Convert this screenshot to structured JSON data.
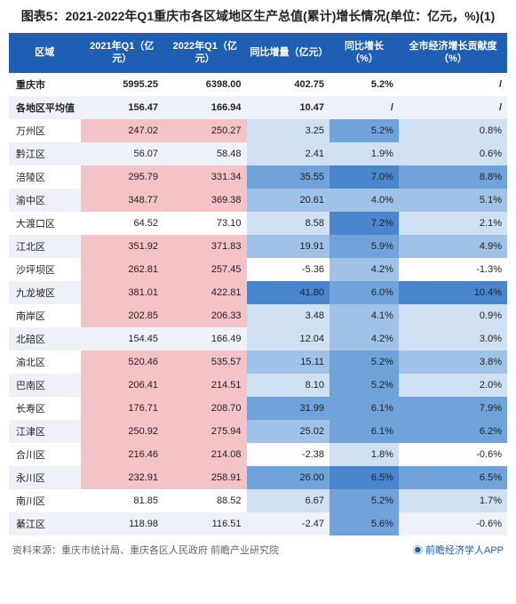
{
  "title": "图表5：2021-2022年Q1重庆市各区域地区生产总值(累计)增长情况(单位：亿元，%)(1)",
  "columns": [
    "区域",
    "2021年Q1（亿元）",
    "2022年Q1（亿元）",
    "同比增量（亿元）",
    "同比增长（%）",
    "全市经济增长贡献度（%）"
  ],
  "col_widths": [
    "62px",
    "72px",
    "72px",
    "72px",
    "60px",
    "94px"
  ],
  "header_bg": "#1e5fb4",
  "header_fg": "#ffffff",
  "band_bg": "#eef2f8",
  "pink_bg": "#f4c3c7",
  "blue1": "#cfe0f2",
  "blue2": "#9fc2e6",
  "blue3": "#6fa3da",
  "blue4": "#4a86cd",
  "rows": [
    {
      "band": false,
      "bold": true,
      "cells": [
        "重庆市",
        "5995.25",
        "6398.00",
        "402.75",
        "5.2%",
        "/"
      ],
      "bg": [
        "",
        "",
        "",
        "",
        "",
        ""
      ]
    },
    {
      "band": true,
      "bold": true,
      "cells": [
        "各地区平均值",
        "156.47",
        "166.94",
        "10.47",
        "/",
        "/"
      ],
      "bg": [
        "",
        "",
        "",
        "",
        "",
        ""
      ]
    },
    {
      "band": false,
      "bold": false,
      "cells": [
        "万州区",
        "247.02",
        "250.27",
        "3.25",
        "5.2%",
        "0.8%"
      ],
      "bg": [
        "",
        "p",
        "p",
        "b1",
        "b3",
        "b1"
      ]
    },
    {
      "band": true,
      "bold": false,
      "cells": [
        "黔江区",
        "56.07",
        "58.48",
        "2.41",
        "1.9%",
        "0.6%"
      ],
      "bg": [
        "",
        "",
        "",
        "b1",
        "b1",
        "b1"
      ]
    },
    {
      "band": false,
      "bold": false,
      "cells": [
        "涪陵区",
        "295.79",
        "331.34",
        "35.55",
        "7.0%",
        "8.8%"
      ],
      "bg": [
        "",
        "p",
        "p",
        "b3",
        "b4",
        "b3"
      ]
    },
    {
      "band": true,
      "bold": false,
      "cells": [
        "渝中区",
        "348.77",
        "369.38",
        "20.61",
        "4.0%",
        "5.1%"
      ],
      "bg": [
        "",
        "p",
        "p",
        "b2",
        "b2",
        "b2"
      ]
    },
    {
      "band": false,
      "bold": false,
      "cells": [
        "大渡口区",
        "64.52",
        "73.10",
        "8.58",
        "7.2%",
        "2.1%"
      ],
      "bg": [
        "",
        "",
        "",
        "b1",
        "b4",
        "b1"
      ]
    },
    {
      "band": true,
      "bold": false,
      "cells": [
        "江北区",
        "351.92",
        "371.83",
        "19.91",
        "5.9%",
        "4.9%"
      ],
      "bg": [
        "",
        "p",
        "p",
        "b2",
        "b3",
        "b2"
      ]
    },
    {
      "band": false,
      "bold": false,
      "cells": [
        "沙坪坝区",
        "262.81",
        "257.45",
        "-5.36",
        "4.2%",
        "-1.3%"
      ],
      "bg": [
        "",
        "p",
        "p",
        "",
        "b2",
        ""
      ]
    },
    {
      "band": true,
      "bold": false,
      "cells": [
        "九龙坡区",
        "381.01",
        "422.81",
        "41.80",
        "6.0%",
        "10.4%"
      ],
      "bg": [
        "",
        "p",
        "p",
        "b4",
        "b3",
        "b4"
      ]
    },
    {
      "band": false,
      "bold": false,
      "cells": [
        "南岸区",
        "202.85",
        "206.33",
        "3.48",
        "4.1%",
        "0.9%"
      ],
      "bg": [
        "",
        "p",
        "p",
        "b1",
        "b2",
        "b1"
      ]
    },
    {
      "band": true,
      "bold": false,
      "cells": [
        "北碚区",
        "154.45",
        "166.49",
        "12.04",
        "4.2%",
        "3.0%"
      ],
      "bg": [
        "",
        "",
        "",
        "b1",
        "b2",
        "b1"
      ]
    },
    {
      "band": false,
      "bold": false,
      "cells": [
        "渝北区",
        "520.46",
        "535.57",
        "15.11",
        "5.2%",
        "3.8%"
      ],
      "bg": [
        "",
        "p",
        "p",
        "b2",
        "b3",
        "b2"
      ]
    },
    {
      "band": true,
      "bold": false,
      "cells": [
        "巴南区",
        "206.41",
        "214.51",
        "8.10",
        "5.2%",
        "2.0%"
      ],
      "bg": [
        "",
        "p",
        "p",
        "b1",
        "b3",
        "b1"
      ]
    },
    {
      "band": false,
      "bold": false,
      "cells": [
        "长寿区",
        "176.71",
        "208.70",
        "31.99",
        "6.1%",
        "7.9%"
      ],
      "bg": [
        "",
        "p",
        "p",
        "b3",
        "b3",
        "b3"
      ]
    },
    {
      "band": true,
      "bold": false,
      "cells": [
        "江津区",
        "250.92",
        "275.94",
        "25.02",
        "6.1%",
        "6.2%"
      ],
      "bg": [
        "",
        "p",
        "p",
        "b2",
        "b3",
        "b3"
      ]
    },
    {
      "band": false,
      "bold": false,
      "cells": [
        "合川区",
        "216.46",
        "214.08",
        "-2.38",
        "1.8%",
        "-0.6%"
      ],
      "bg": [
        "",
        "p",
        "p",
        "",
        "b1",
        ""
      ]
    },
    {
      "band": true,
      "bold": false,
      "cells": [
        "永川区",
        "232.91",
        "258.91",
        "26.00",
        "6.5%",
        "6.5%"
      ],
      "bg": [
        "",
        "p",
        "p",
        "b3",
        "b4",
        "b3"
      ]
    },
    {
      "band": false,
      "bold": false,
      "cells": [
        "南川区",
        "81.85",
        "88.52",
        "6.67",
        "5.2%",
        "1.7%"
      ],
      "bg": [
        "",
        "",
        "",
        "b1",
        "b3",
        "b1"
      ]
    },
    {
      "band": true,
      "bold": false,
      "cells": [
        "綦江区",
        "118.98",
        "116.51",
        "-2.47",
        "5.6%",
        "-0.6%"
      ],
      "bg": [
        "",
        "",
        "",
        "",
        "b3",
        ""
      ]
    }
  ],
  "source": "资料来源：重庆市统计局、重庆各区人民政府 前瞻产业研究院",
  "app": "前瞻经济学人APP"
}
